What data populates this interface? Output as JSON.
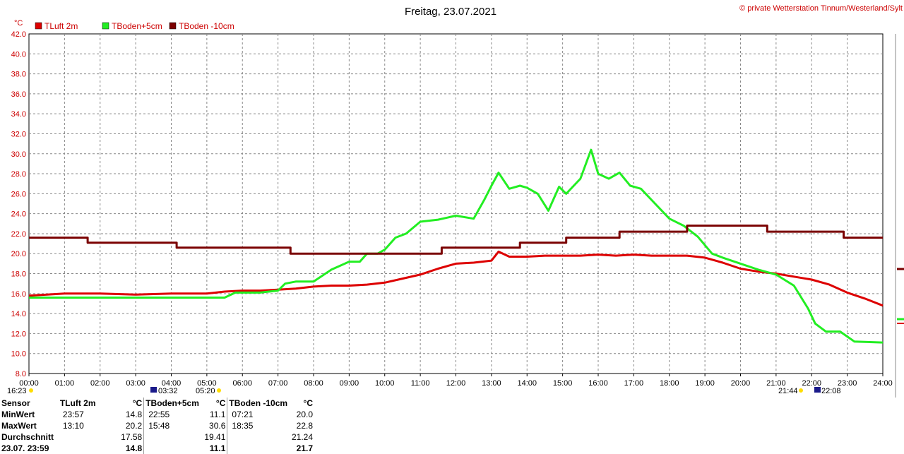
{
  "title": "Freitag, 23.07.2021",
  "copyright": "© private Wetterstation Tinnum/Westerland/Sylt",
  "colors": {
    "tluft": "#dd0000",
    "tboden5": "#22ee22",
    "tboden10": "#7a0000",
    "grid": "#888888",
    "axis": "#cc0000"
  },
  "chart_data": {
    "type": "line",
    "ylabel": "°C",
    "ylim": [
      8,
      42
    ],
    "xlim": [
      0,
      24
    ],
    "grid": true,
    "legend": "top-left",
    "y_ticks": [
      "8.0",
      "10.0",
      "12.0",
      "14.0",
      "16.0",
      "18.0",
      "20.0",
      "22.0",
      "24.0",
      "26.0",
      "28.0",
      "30.0",
      "32.0",
      "34.0",
      "36.0",
      "38.0",
      "40.0",
      "42.0"
    ],
    "x_ticks": [
      "00:00",
      "01:00",
      "02:00",
      "03:00",
      "04:00",
      "05:00",
      "06:00",
      "07:00",
      "08:00",
      "09:00",
      "10:00",
      "11:00",
      "12:00",
      "13:00",
      "14:00",
      "15:00",
      "16:00",
      "17:00",
      "18:00",
      "19:00",
      "20:00",
      "21:00",
      "22:00",
      "23:00",
      "24:00"
    ],
    "series": [
      {
        "name": "TLuft 2m",
        "key": "tluft",
        "x": [
          0,
          1,
          2,
          3,
          4,
          5,
          5.5,
          6,
          6.5,
          7,
          7.5,
          8,
          8.5,
          9,
          9.5,
          10,
          10.5,
          11,
          11.5,
          12,
          12.5,
          13,
          13.2,
          13.5,
          14,
          14.5,
          15,
          15.5,
          16,
          16.5,
          17,
          17.5,
          18,
          18.5,
          19,
          19.5,
          20,
          20.5,
          21,
          21.5,
          22,
          22.5,
          23,
          23.5,
          24
        ],
        "y": [
          15.8,
          16.0,
          16.0,
          15.9,
          16.0,
          16.0,
          16.2,
          16.3,
          16.3,
          16.4,
          16.5,
          16.7,
          16.8,
          16.8,
          16.9,
          17.1,
          17.5,
          17.9,
          18.5,
          19.0,
          19.1,
          19.3,
          20.2,
          19.7,
          19.7,
          19.8,
          19.8,
          19.8,
          19.9,
          19.8,
          19.9,
          19.8,
          19.8,
          19.8,
          19.6,
          19.1,
          18.5,
          18.2,
          18.0,
          17.7,
          17.4,
          16.9,
          16.1,
          15.5,
          14.8
        ]
      },
      {
        "name": "TBoden+5cm",
        "key": "tboden5",
        "x": [
          0,
          2,
          4,
          5.5,
          5.8,
          6.0,
          6.5,
          7.0,
          7.2,
          7.5,
          8.0,
          8.5,
          9.0,
          9.3,
          9.5,
          9.8,
          10.0,
          10.3,
          10.6,
          11.0,
          11.5,
          12.0,
          12.5,
          12.8,
          13.0,
          13.2,
          13.5,
          13.8,
          14.0,
          14.3,
          14.6,
          14.9,
          15.1,
          15.5,
          15.8,
          16.0,
          16.3,
          16.6,
          16.9,
          17.2,
          17.6,
          18.0,
          18.4,
          18.8,
          19.2,
          19.5,
          20.0,
          20.5,
          21.0,
          21.5,
          21.9,
          22.1,
          22.4,
          22.8,
          23.2,
          24
        ],
        "y": [
          15.6,
          15.6,
          15.6,
          15.6,
          16.1,
          16.1,
          16.1,
          16.3,
          17.0,
          17.2,
          17.2,
          18.4,
          19.2,
          19.2,
          20.0,
          20.0,
          20.4,
          21.6,
          22.0,
          23.2,
          23.4,
          23.8,
          23.5,
          25.4,
          26.8,
          28.1,
          26.5,
          26.8,
          26.6,
          26.0,
          24.3,
          26.7,
          26.0,
          27.5,
          30.4,
          28.0,
          27.5,
          28.1,
          26.8,
          26.5,
          25.0,
          23.5,
          22.8,
          21.7,
          20.0,
          19.6,
          19.0,
          18.4,
          17.9,
          16.8,
          14.5,
          13.0,
          12.2,
          12.2,
          11.2,
          11.1
        ]
      },
      {
        "name": "TBoden -10cm",
        "key": "tboden10",
        "x": [
          0,
          1.65,
          1.65,
          4.15,
          4.15,
          7.35,
          7.35,
          11.6,
          11.6,
          13.8,
          13.8,
          15.1,
          15.1,
          16.6,
          16.6,
          18.5,
          18.5,
          20.75,
          20.75,
          22.9,
          22.9,
          24
        ],
        "y": [
          21.6,
          21.6,
          21.1,
          21.1,
          20.6,
          20.6,
          20.0,
          20.0,
          20.6,
          20.6,
          21.1,
          21.1,
          21.6,
          21.6,
          22.2,
          22.2,
          22.8,
          22.8,
          22.2,
          22.2,
          21.6,
          21.6
        ]
      }
    ]
  },
  "sun": {
    "sunset_prev": "16:23",
    "sunrise_dawn": "03:32",
    "sunrise": "05:20",
    "sunset": "21:44",
    "dusk": "22:08"
  },
  "table": {
    "headers": {
      "sensor": "Sensor",
      "s1": "TLuft 2m",
      "s2": "TBoden+5cm",
      "s3": "TBoden -10cm",
      "unit": "°C"
    },
    "rows": [
      {
        "label": "MinWert",
        "t1": "23:57",
        "v1": "14.8",
        "t2": "22:55",
        "v2": "11.1",
        "t3": "07:21",
        "v3": "20.0"
      },
      {
        "label": "MaxWert",
        "t1": "13:10",
        "v1": "20.2",
        "t2": "15:48",
        "v2": "30.6",
        "t3": "18:35",
        "v3": "22.8"
      },
      {
        "label": "Durchschnitt",
        "t1": "",
        "v1": "17.58",
        "t2": "",
        "v2": "19.41",
        "t3": "",
        "v3": "21.24"
      },
      {
        "label": "23.07. 23:59",
        "t1": "",
        "v1": "14.8",
        "t2": "",
        "v2": "11.1",
        "t3": "",
        "v3": "21.7"
      }
    ]
  }
}
